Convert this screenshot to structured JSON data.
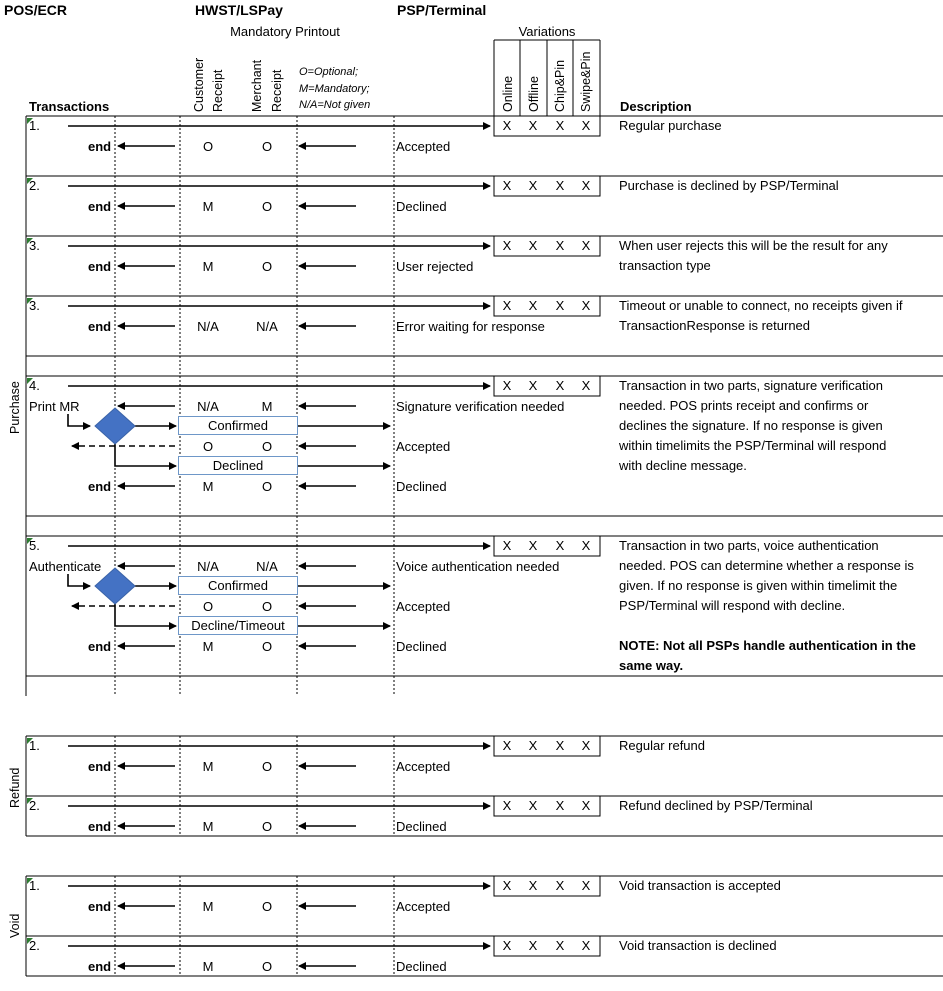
{
  "headers": {
    "pos": "POS/ECR",
    "hwst": "HWST/LSPay",
    "psp": "PSP/Terminal",
    "variations": "Variations",
    "mandatory_printout": "Mandatory Printout",
    "transactions": "Transactions",
    "customer_receipt": [
      "Customer",
      "Receipt"
    ],
    "merchant_receipt": [
      "Merchant",
      "Receipt"
    ],
    "legend": [
      "O=Optional;",
      "M=Mandatory;",
      "N/A=Not given"
    ],
    "variation_cols": [
      "Online",
      "Offline",
      "Chip&Pin",
      "Swipe&Pin"
    ],
    "description": "Description"
  },
  "groups": {
    "purchase": "Purchase",
    "refund": "Refund",
    "void": "Void"
  },
  "common": {
    "end": "end",
    "mark": "X"
  },
  "rows": [
    {
      "num": "1.",
      "cust": "O",
      "merch": "O",
      "status": "Accepted",
      "desc": [
        "Regular purchase"
      ]
    },
    {
      "num": "2.",
      "cust": "M",
      "merch": "O",
      "status": "Declined",
      "desc": [
        "Purchase is declined by PSP/Terminal"
      ]
    },
    {
      "num": "3.",
      "cust": "M",
      "merch": "O",
      "status": "User rejected",
      "desc": [
        "When user rejects this will be the result for any",
        "transaction type"
      ]
    },
    {
      "num": "3.",
      "cust": "N/A",
      "merch": "N/A",
      "status": "Error waiting for response",
      "desc": [
        "Timeout or unable to connect, no receipts given if",
        "TransactionResponse is returned"
      ]
    },
    {
      "num": "1.",
      "cust": "M",
      "merch": "O",
      "status": "Accepted",
      "desc": [
        "Regular refund"
      ]
    },
    {
      "num": "2.",
      "cust": "M",
      "merch": "O",
      "status": "Declined",
      "desc": [
        "Refund declined by PSP/Terminal"
      ]
    },
    {
      "num": "1.",
      "cust": "M",
      "merch": "O",
      "status": "Accepted",
      "desc": [
        "Void transaction is accepted"
      ]
    },
    {
      "num": "2.",
      "cust": "M",
      "merch": "O",
      "status": "Declined",
      "desc": [
        "Void transaction is declined"
      ]
    }
  ],
  "flow4": {
    "num": "4.",
    "trigger": "Print MR",
    "first_cust": "N/A",
    "first_merch": "M",
    "first_status": "Signature verification needed",
    "confirm_box": "Confirmed",
    "confirm_cust": "O",
    "confirm_merch": "O",
    "confirm_status": "Accepted",
    "decline_box": "Declined",
    "decline_cust": "M",
    "decline_merch": "O",
    "decline_status": "Declined",
    "desc": [
      "Transaction in two parts, signature verification",
      "needed. POS prints receipt and confirms or",
      "declines the signature.  If no response is given",
      "within timelimits the PSP/Terminal will respond",
      "with decline message."
    ]
  },
  "flow5": {
    "num": "5.",
    "trigger": "Authenticate",
    "first_cust": "N/A",
    "first_merch": "N/A",
    "first_status": "Voice authentication needed",
    "confirm_box": "Confirmed",
    "confirm_cust": "O",
    "confirm_merch": "O",
    "confirm_status": "Accepted",
    "decline_box": "Decline/Timeout",
    "decline_cust": "M",
    "decline_merch": "O",
    "decline_status": "Declined",
    "desc": [
      "Transaction in two parts, voice authentication",
      "needed. POS can determine whether a response is",
      "given. If no response is given within timelimit the",
      "PSP/Terminal will respond with decline."
    ],
    "note": [
      "NOTE: Not all PSPs handle authentication in the",
      "same way."
    ]
  },
  "colors": {
    "diamond": "#4472c4",
    "box_border": "#6e97c8",
    "corner_mark": "#2e7d32"
  }
}
